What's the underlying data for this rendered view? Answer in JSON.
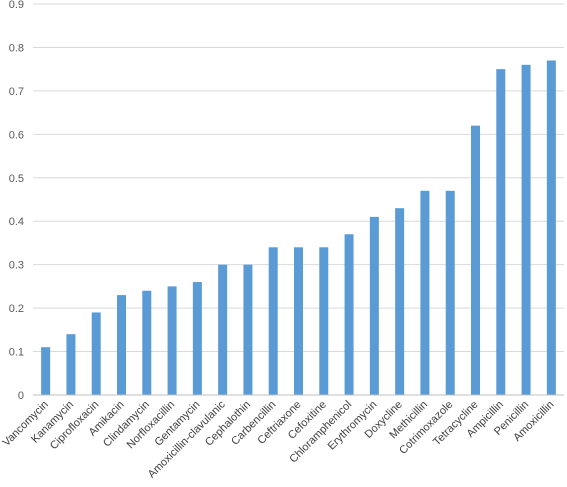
{
  "chart_data": {
    "type": "bar",
    "title": "",
    "xlabel": "",
    "ylabel": "",
    "ylim": [
      0,
      0.9
    ],
    "yticks": [
      "0",
      "0.1",
      "0.2",
      "0.3",
      "0.4",
      "0.5",
      "0.6",
      "0.7",
      "0.8",
      "0.9"
    ],
    "grid": true,
    "legend": "none",
    "bar_color": "#5B9BD5",
    "categories": [
      "Vancomycin",
      "Kanamycin",
      "Ciprofloxacin",
      "Amikacin",
      "Clindamycin",
      "Norfloxacillin",
      "Gentamycin",
      "Amoxicillin-clavulanic",
      "Cephalothin",
      "Carbencillin",
      "Ceftriaxone",
      "Cefoxitine",
      "Chloramphenicol",
      "Erythromycin",
      "Doxycline",
      "Methicillin",
      "Cotrimoxazole",
      "Tetracycline",
      "Ampicillin",
      "Penicillin",
      "Amoxicillin"
    ],
    "values": [
      0.11,
      0.14,
      0.19,
      0.23,
      0.24,
      0.25,
      0.26,
      0.3,
      0.3,
      0.34,
      0.34,
      0.34,
      0.37,
      0.41,
      0.43,
      0.47,
      0.47,
      0.62,
      0.75,
      0.76,
      0.77
    ]
  }
}
